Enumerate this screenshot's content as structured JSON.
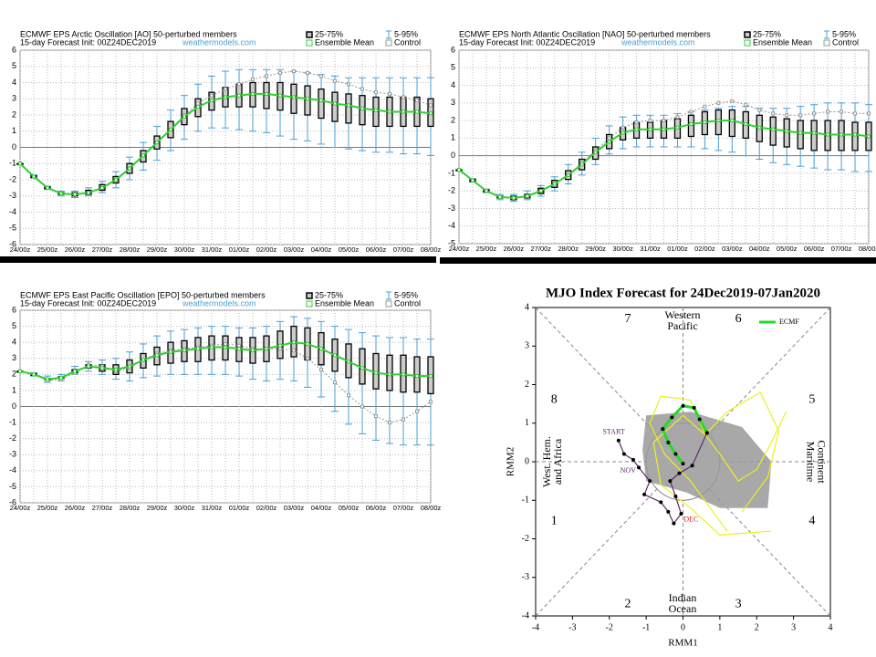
{
  "chart_data": [
    {
      "type": "boxplot",
      "title": "ECMWF EPS Arctic Oscillation [AO]  50-perturbed members",
      "subtitle": "15-day Forecast Init: 00Z24DEC2019",
      "source": "weathermodels.com",
      "categories": [
        "24/00z",
        null,
        "25/00z",
        null,
        "26/00z",
        null,
        "27/00z",
        null,
        "28/00z",
        null,
        "29/00z",
        null,
        "30/00z",
        null,
        "31/00z",
        null,
        "01/00z",
        null,
        "02/00z",
        null,
        "03/00z",
        null,
        "04/00z",
        null,
        "05/00z",
        null,
        "06/00z",
        null,
        "07/00z",
        null,
        "08/00z"
      ],
      "ylim": [
        -6,
        6
      ],
      "yticks": [
        -6,
        -5,
        -4,
        -3,
        -2,
        -1,
        0,
        1,
        2,
        3,
        4,
        5,
        6
      ],
      "grid": true,
      "series": [
        {
          "name": "25-75%",
          "color": "#000000",
          "low": [
            -1.0,
            -1.85,
            -2.55,
            -2.9,
            -3.0,
            -2.9,
            -2.65,
            -2.2,
            -1.6,
            -0.9,
            -0.1,
            0.6,
            1.4,
            1.9,
            2.3,
            2.5,
            2.5,
            2.5,
            2.4,
            2.3,
            2.1,
            2.0,
            1.8,
            1.6,
            1.5,
            1.4,
            1.3,
            1.3,
            1.3,
            1.3,
            1.3
          ],
          "high": [
            -1.0,
            -1.75,
            -2.45,
            -2.8,
            -2.8,
            -2.65,
            -2.3,
            -1.8,
            -1.0,
            -0.2,
            0.7,
            1.6,
            2.4,
            3.0,
            3.4,
            3.7,
            3.9,
            4.0,
            4.0,
            4.0,
            3.9,
            3.8,
            3.6,
            3.4,
            3.3,
            3.2,
            3.1,
            3.1,
            3.1,
            3.1,
            3.0
          ]
        },
        {
          "name": "5-95%",
          "color": "#4a9fd4",
          "low": [
            -1.0,
            -1.9,
            -2.6,
            -3.0,
            -3.1,
            -3.0,
            -2.8,
            -2.5,
            -2.0,
            -1.4,
            -0.8,
            -0.2,
            0.5,
            1.0,
            1.2,
            1.2,
            1.1,
            1.0,
            0.9,
            0.7,
            0.5,
            0.4,
            0.2,
            0.0,
            -0.1,
            -0.2,
            -0.3,
            -0.3,
            -0.4,
            -0.4,
            -0.5
          ],
          "high": [
            -1.0,
            -1.7,
            -2.4,
            -2.7,
            -2.7,
            -2.5,
            -2.1,
            -1.5,
            -0.6,
            0.3,
            1.3,
            2.3,
            3.2,
            3.9,
            4.4,
            4.7,
            4.8,
            4.8,
            4.8,
            4.8,
            4.7,
            4.6,
            4.5,
            4.4,
            4.3,
            4.3,
            4.3,
            4.3,
            4.3,
            4.3,
            4.3
          ]
        },
        {
          "name": "Ensemble Mean",
          "color": "#33cc33",
          "values": [
            -1.0,
            -1.8,
            -2.5,
            -2.85,
            -2.9,
            -2.8,
            -2.5,
            -2.0,
            -1.3,
            -0.5,
            0.3,
            1.1,
            1.9,
            2.5,
            2.9,
            3.1,
            3.2,
            3.3,
            3.3,
            3.2,
            3.1,
            3.0,
            2.9,
            2.7,
            2.6,
            2.4,
            2.3,
            2.2,
            2.2,
            2.2,
            2.1
          ]
        },
        {
          "name": "Control",
          "color": "#999999",
          "values": [
            -1.0,
            -1.8,
            -2.5,
            -2.85,
            -2.9,
            -2.8,
            -2.5,
            -2.0,
            -1.3,
            -0.5,
            0.3,
            1.1,
            2.0,
            2.7,
            3.2,
            3.6,
            3.9,
            4.2,
            4.4,
            4.6,
            4.7,
            4.6,
            4.4,
            4.1,
            3.9,
            3.6,
            3.4,
            3.3,
            3.1,
            2.9,
            2.6
          ]
        }
      ]
    },
    {
      "type": "boxplot",
      "title": "ECMWF EPS North Atlantic Oscillation [NAO]  50-perturbed members",
      "subtitle": "15-day Forecast Init: 00Z24DEC2019",
      "source": "weathermodels.com",
      "categories": [
        "24/00z",
        null,
        "25/00z",
        null,
        "26/00z",
        null,
        "27/00z",
        null,
        "28/00z",
        null,
        "29/00z",
        null,
        "30/00z",
        null,
        "31/00z",
        null,
        "01/00z",
        null,
        "02/00z",
        null,
        "03/00z",
        null,
        "04/00z",
        null,
        "05/00z",
        null,
        "06/00z",
        null,
        "07/00z",
        null,
        "08/00z"
      ],
      "ylim": [
        -5,
        6
      ],
      "yticks": [
        -5,
        -4,
        -3,
        -2,
        -1,
        0,
        1,
        2,
        3,
        4,
        5,
        6
      ],
      "grid": true,
      "series": [
        {
          "name": "25-75%",
          "color": "#000000",
          "low": [
            -0.8,
            -1.45,
            -2.05,
            -2.4,
            -2.5,
            -2.4,
            -2.15,
            -1.8,
            -1.35,
            -0.8,
            -0.2,
            0.4,
            0.9,
            1.0,
            1.0,
            1.0,
            1.0,
            1.1,
            1.2,
            1.2,
            1.1,
            1.0,
            0.8,
            0.6,
            0.5,
            0.4,
            0.3,
            0.3,
            0.3,
            0.3,
            0.3
          ],
          "high": [
            -0.8,
            -1.35,
            -1.95,
            -2.3,
            -2.3,
            -2.2,
            -1.85,
            -1.4,
            -0.85,
            -0.2,
            0.5,
            1.2,
            1.6,
            1.9,
            1.9,
            2.0,
            2.1,
            2.3,
            2.5,
            2.6,
            2.6,
            2.5,
            2.3,
            2.2,
            2.1,
            2.0,
            2.0,
            2.0,
            2.0,
            1.9,
            1.9
          ]
        },
        {
          "name": "5-95%",
          "color": "#4a9fd4",
          "low": [
            -0.8,
            -1.5,
            -2.1,
            -2.5,
            -2.6,
            -2.5,
            -2.3,
            -2.0,
            -1.6,
            -1.1,
            -0.5,
            0.1,
            0.4,
            0.5,
            0.5,
            0.5,
            0.5,
            0.5,
            0.4,
            0.3,
            0.2,
            0.0,
            -0.2,
            -0.4,
            -0.5,
            -0.6,
            -0.7,
            -0.8,
            -0.8,
            -0.9,
            -0.9
          ],
          "high": [
            -0.8,
            -1.3,
            -1.9,
            -2.2,
            -2.2,
            -2.0,
            -1.7,
            -1.2,
            -0.5,
            0.2,
            1.0,
            1.7,
            2.2,
            2.3,
            2.3,
            2.3,
            2.4,
            2.5,
            2.6,
            2.7,
            2.8,
            2.8,
            2.7,
            2.7,
            2.7,
            2.8,
            2.9,
            3.0,
            3.0,
            3.0,
            2.9
          ]
        },
        {
          "name": "Ensemble Mean",
          "color": "#33cc33",
          "values": [
            -0.8,
            -1.4,
            -2.0,
            -2.35,
            -2.4,
            -2.3,
            -2.0,
            -1.6,
            -1.1,
            -0.5,
            0.2,
            0.8,
            1.3,
            1.5,
            1.5,
            1.5,
            1.6,
            1.8,
            1.9,
            2.0,
            2.0,
            1.8,
            1.6,
            1.5,
            1.4,
            1.3,
            1.3,
            1.2,
            1.2,
            1.2,
            1.1
          ]
        },
        {
          "name": "Control",
          "color": "#999999",
          "values": [
            -0.8,
            -1.4,
            -2.0,
            -2.35,
            -2.4,
            -2.3,
            -2.0,
            -1.6,
            -1.1,
            -0.4,
            0.3,
            1.0,
            1.6,
            1.9,
            2.0,
            2.0,
            2.2,
            2.5,
            2.8,
            3.0,
            3.1,
            2.9,
            2.6,
            2.4,
            2.3,
            2.3,
            2.4,
            2.5,
            2.5,
            2.4,
            2.4
          ]
        }
      ]
    },
    {
      "type": "boxplot",
      "title": "ECMWF EPS East Pacific Oscillation [EPO]  50-perturbed members",
      "subtitle": "15-day Forecast Init: 00Z24DEC2019",
      "source": "weathermodels.com",
      "categories": [
        "24/00z",
        null,
        "25/00z",
        null,
        "26/00z",
        null,
        "27/00z",
        null,
        "28/00z",
        null,
        "29/00z",
        null,
        "30/00z",
        null,
        "31/00z",
        null,
        "01/00z",
        null,
        "02/00z",
        null,
        "03/00z",
        null,
        "04/00z",
        null,
        "05/00z",
        null,
        "06/00z",
        null,
        "07/00z",
        null,
        "08/00z"
      ],
      "ylim": [
        -6,
        6
      ],
      "yticks": [
        -6,
        -5,
        -4,
        -3,
        -2,
        -1,
        0,
        1,
        2,
        3,
        4,
        5,
        6
      ],
      "grid": true,
      "series": [
        {
          "name": "25-75%",
          "color": "#000000",
          "low": [
            2.2,
            1.95,
            1.65,
            1.75,
            2.1,
            2.4,
            2.2,
            2.0,
            2.1,
            2.4,
            2.6,
            2.7,
            2.8,
            2.8,
            2.9,
            2.9,
            2.8,
            2.7,
            2.8,
            3.0,
            3.1,
            2.9,
            2.6,
            2.2,
            1.8,
            1.4,
            1.1,
            1.0,
            0.9,
            0.9,
            0.8
          ],
          "high": [
            2.2,
            2.05,
            1.75,
            1.85,
            2.3,
            2.6,
            2.6,
            2.6,
            2.9,
            3.3,
            3.7,
            4.0,
            4.1,
            4.3,
            4.4,
            4.4,
            4.3,
            4.3,
            4.4,
            4.7,
            5.0,
            4.9,
            4.6,
            4.2,
            3.9,
            3.6,
            3.3,
            3.2,
            3.2,
            3.1,
            3.1
          ]
        },
        {
          "name": "5-95%",
          "color": "#4a9fd4",
          "low": [
            2.2,
            1.9,
            1.5,
            1.6,
            2.0,
            2.2,
            2.0,
            1.7,
            1.6,
            1.8,
            1.9,
            2.0,
            2.0,
            2.0,
            2.0,
            2.0,
            1.9,
            1.7,
            1.6,
            1.7,
            1.6,
            1.2,
            0.6,
            -0.3,
            -1.1,
            -1.7,
            -2.1,
            -2.3,
            -2.4,
            -2.4,
            -2.4
          ],
          "high": [
            2.2,
            2.1,
            1.9,
            2.0,
            2.5,
            2.8,
            2.9,
            3.0,
            3.4,
            3.9,
            4.4,
            4.7,
            4.8,
            4.9,
            5.0,
            5.0,
            4.9,
            4.9,
            5.0,
            5.3,
            5.6,
            5.5,
            5.3,
            5.0,
            4.8,
            4.6,
            4.4,
            4.3,
            4.3,
            4.2,
            4.2
          ]
        },
        {
          "name": "Ensemble Mean",
          "color": "#33cc33",
          "values": [
            2.2,
            2.0,
            1.7,
            1.8,
            2.2,
            2.5,
            2.4,
            2.3,
            2.5,
            2.9,
            3.2,
            3.4,
            3.5,
            3.6,
            3.7,
            3.7,
            3.6,
            3.5,
            3.6,
            3.8,
            4.0,
            3.9,
            3.6,
            3.2,
            2.8,
            2.4,
            2.1,
            2.0,
            2.0,
            1.9,
            1.9
          ]
        },
        {
          "name": "Control",
          "color": "#999999",
          "values": [
            2.2,
            2.0,
            1.6,
            1.7,
            2.1,
            2.6,
            2.5,
            2.2,
            2.4,
            2.9,
            3.3,
            3.5,
            3.6,
            3.7,
            3.8,
            3.9,
            3.8,
            3.6,
            3.6,
            3.6,
            3.5,
            3.0,
            2.3,
            1.5,
            0.7,
            0.0,
            -0.6,
            -1.0,
            -0.8,
            -0.3,
            0.3
          ]
        }
      ]
    },
    {
      "type": "phase",
      "title": "MJO Index Forecast for 24Dec2019-07Jan2020",
      "xlabel": "RMM1",
      "ylabel": "RMM2",
      "xlim": [
        -4,
        4
      ],
      "ylim": [
        -4,
        4
      ],
      "xticks": [
        -4,
        -3,
        -2,
        -1,
        0,
        1,
        2,
        3,
        4
      ],
      "yticks": [
        -4,
        -3,
        -2,
        -1,
        0,
        1,
        2,
        3,
        4
      ],
      "phases": [
        "1",
        "2",
        "3",
        "4",
        "5",
        "6",
        "7",
        "8"
      ],
      "regions": [
        [
          "Western",
          "Pacific"
        ],
        [
          "Indian",
          "Ocean"
        ],
        [
          "West. Hem.",
          "and Africa"
        ],
        [
          "Maritime",
          "Continent"
        ]
      ],
      "annotations": [
        "START",
        "NOV",
        "DEC"
      ],
      "plume": {
        "color": "#999999",
        "x": [
          -1.0,
          0.2,
          1.6,
          2.4,
          2.3,
          1.0,
          0.1,
          -1.0,
          -1.1
        ],
        "y": [
          1.2,
          1.3,
          0.9,
          0.0,
          -1.2,
          -1.2,
          -0.8,
          -0.5,
          0.3
        ]
      },
      "series": [
        {
          "color": "#eeee22",
          "x": [
            0.6,
            0.2,
            -0.6,
            -0.9,
            -0.5,
            0.2,
            1.2
          ],
          "y": [
            0.7,
            1.6,
            1.7,
            1.0,
            0.2,
            -0.5,
            -1.8
          ]
        },
        {
          "color": "#eeee22",
          "x": [
            0.6,
            1.2,
            2.1,
            2.6,
            2.3,
            1.6
          ],
          "y": [
            0.7,
            1.3,
            1.8,
            0.8,
            -0.4,
            -1.3
          ]
        },
        {
          "color": "#eeee22",
          "x": [
            0.6,
            0.0,
            -0.8,
            -0.6,
            0.2,
            1.0,
            2.4
          ],
          "y": [
            0.7,
            1.2,
            0.5,
            -0.6,
            -1.2,
            -1.9,
            -1.8
          ]
        },
        {
          "color": "#eeee22",
          "x": [
            0.6,
            1.0,
            1.5,
            2.0,
            2.4,
            2.8
          ],
          "y": [
            0.7,
            0.2,
            -0.5,
            -0.2,
            0.5,
            1.3
          ]
        },
        {
          "color": "#5a2a6a",
          "x": [
            -1.75,
            -1.6,
            -1.35,
            -1.2,
            -0.9,
            -1.05,
            -0.6,
            -0.4,
            -0.25,
            -0.05,
            -0.2,
            -0.35,
            -0.1,
            0.25,
            0.65
          ],
          "y": [
            0.55,
            0.2,
            0.05,
            -0.15,
            -0.5,
            -0.85,
            -1.05,
            -1.3,
            -1.6,
            -1.35,
            -0.9,
            -0.5,
            -0.3,
            -0.1,
            0.75
          ]
        },
        {
          "name": "ECMF",
          "color": "#22dd22",
          "x": [
            0.65,
            0.45,
            0.3,
            0.0,
            -0.3,
            -0.55,
            -0.4,
            -0.2,
            0.0
          ],
          "y": [
            0.75,
            1.1,
            1.4,
            1.45,
            1.15,
            0.85,
            0.5,
            0.2,
            -0.05
          ]
        }
      ]
    }
  ]
}
